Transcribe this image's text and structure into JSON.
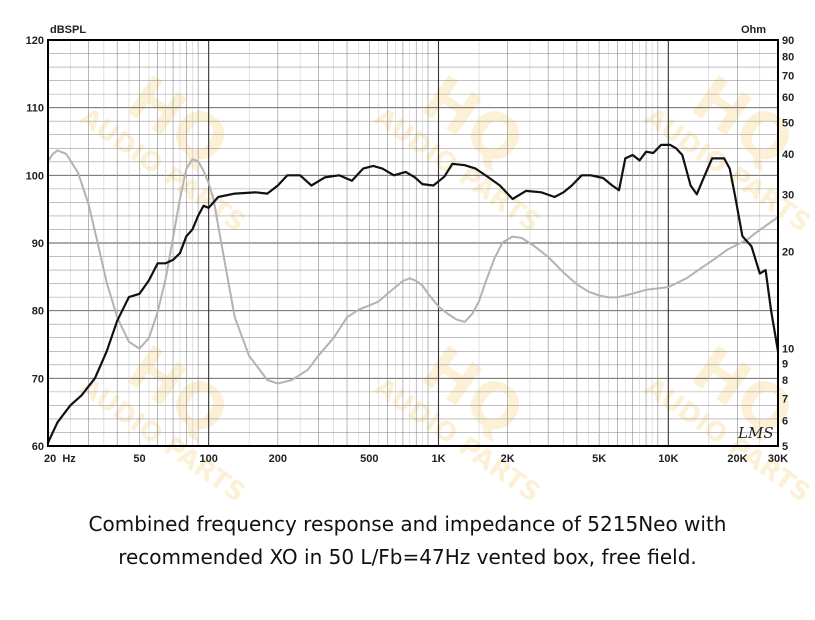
{
  "chart_data": {
    "type": "line",
    "x_scale": "log",
    "xlim": [
      20,
      30000
    ],
    "ylim": [
      60,
      120
    ],
    "ylim_right": [
      5,
      90
    ],
    "ylabel": "dBSPL",
    "ylabel_right": "Ohm",
    "x_tick_labels": [
      {
        "value": 20,
        "label": "20  Hz"
      },
      {
        "value": 50,
        "label": "50"
      },
      {
        "value": 100,
        "label": "100"
      },
      {
        "value": 200,
        "label": "200"
      },
      {
        "value": 500,
        "label": "500"
      },
      {
        "value": 1000,
        "label": "1K"
      },
      {
        "value": 2000,
        "label": "2K"
      },
      {
        "value": 5000,
        "label": "5K"
      },
      {
        "value": 10000,
        "label": "10K"
      },
      {
        "value": 20000,
        "label": "20K"
      },
      {
        "value": 30000,
        "label": "30K"
      }
    ],
    "y_tick_labels": [
      60,
      70,
      80,
      90,
      100,
      110,
      120
    ],
    "y_right_tick_labels": [
      5,
      6,
      7,
      8,
      9,
      10,
      20,
      30,
      40,
      50,
      60,
      70,
      80,
      90
    ],
    "grid": true,
    "brand_mark": "LMS",
    "series": [
      {
        "axis": "left",
        "color": "#111111",
        "points": [
          [
            20,
            60.5
          ],
          [
            22,
            63.5
          ],
          [
            25,
            66
          ],
          [
            28,
            67.5
          ],
          [
            32,
            70
          ],
          [
            36,
            74
          ],
          [
            40,
            78.5
          ],
          [
            45,
            82
          ],
          [
            50,
            82.5
          ],
          [
            55,
            84.5
          ],
          [
            60,
            87
          ],
          [
            65,
            87
          ],
          [
            70,
            87.5
          ],
          [
            75,
            88.5
          ],
          [
            80,
            91
          ],
          [
            85,
            92
          ],
          [
            90,
            94
          ],
          [
            95,
            95.5
          ],
          [
            100,
            95.2
          ],
          [
            110,
            96.8
          ],
          [
            130,
            97.3
          ],
          [
            160,
            97.5
          ],
          [
            180,
            97.3
          ],
          [
            200,
            98.5
          ],
          [
            220,
            100
          ],
          [
            250,
            100
          ],
          [
            280,
            98.5
          ],
          [
            320,
            99.7
          ],
          [
            370,
            100
          ],
          [
            420,
            99.2
          ],
          [
            470,
            101
          ],
          [
            520,
            101.4
          ],
          [
            570,
            101
          ],
          [
            640,
            100
          ],
          [
            720,
            100.5
          ],
          [
            790,
            99.7
          ],
          [
            850,
            98.7
          ],
          [
            950,
            98.5
          ],
          [
            1060,
            99.8
          ],
          [
            1150,
            101.7
          ],
          [
            1300,
            101.5
          ],
          [
            1450,
            101
          ],
          [
            1650,
            99.7
          ],
          [
            1850,
            98.5
          ],
          [
            2100,
            96.5
          ],
          [
            2400,
            97.7
          ],
          [
            2800,
            97.5
          ],
          [
            3200,
            96.8
          ],
          [
            3500,
            97.5
          ],
          [
            3800,
            98.5
          ],
          [
            4200,
            100
          ],
          [
            4600,
            100
          ],
          [
            5200,
            99.6
          ],
          [
            5700,
            98.5
          ],
          [
            6100,
            97.8
          ],
          [
            6500,
            102.5
          ],
          [
            7000,
            103
          ],
          [
            7500,
            102.2
          ],
          [
            8000,
            103.5
          ],
          [
            8600,
            103.3
          ],
          [
            9300,
            104.5
          ],
          [
            10200,
            104.5
          ],
          [
            10800,
            104
          ],
          [
            11500,
            103
          ],
          [
            12500,
            98.5
          ],
          [
            13300,
            97.2
          ],
          [
            14200,
            99.5
          ],
          [
            15500,
            102.5
          ],
          [
            17500,
            102.5
          ],
          [
            18500,
            101
          ],
          [
            19500,
            97
          ],
          [
            21000,
            91
          ],
          [
            23000,
            89.5
          ],
          [
            25000,
            85.5
          ],
          [
            26500,
            86
          ],
          [
            28000,
            80
          ],
          [
            30000,
            74
          ]
        ]
      },
      {
        "axis": "right",
        "color": "#b3b3b3",
        "points": [
          [
            20,
            38
          ],
          [
            21,
            40
          ],
          [
            22,
            41
          ],
          [
            24,
            40
          ],
          [
            27,
            35
          ],
          [
            30,
            28
          ],
          [
            33,
            21
          ],
          [
            36,
            16
          ],
          [
            40,
            12.5
          ],
          [
            45,
            10.5
          ],
          [
            50,
            10
          ],
          [
            55,
            10.8
          ],
          [
            60,
            13
          ],
          [
            65,
            16.5
          ],
          [
            70,
            22
          ],
          [
            75,
            29
          ],
          [
            80,
            36
          ],
          [
            85,
            38.5
          ],
          [
            90,
            38
          ],
          [
            95,
            35.5
          ],
          [
            100,
            32.5
          ],
          [
            105,
            29
          ],
          [
            110,
            24
          ],
          [
            120,
            17
          ],
          [
            130,
            12.5
          ],
          [
            150,
            9.5
          ],
          [
            180,
            8
          ],
          [
            200,
            7.8
          ],
          [
            230,
            8
          ],
          [
            270,
            8.6
          ],
          [
            300,
            9.5
          ],
          [
            350,
            10.8
          ],
          [
            400,
            12.5
          ],
          [
            450,
            13.2
          ],
          [
            500,
            13.6
          ],
          [
            550,
            14
          ],
          [
            600,
            14.8
          ],
          [
            650,
            15.5
          ],
          [
            700,
            16.2
          ],
          [
            750,
            16.5
          ],
          [
            800,
            16.2
          ],
          [
            850,
            15.7
          ],
          [
            900,
            14.8
          ],
          [
            1000,
            13.5
          ],
          [
            1100,
            12.8
          ],
          [
            1200,
            12.3
          ],
          [
            1300,
            12.1
          ],
          [
            1400,
            12.8
          ],
          [
            1500,
            14
          ],
          [
            1600,
            16
          ],
          [
            1750,
            19
          ],
          [
            1900,
            21.3
          ],
          [
            2100,
            22.2
          ],
          [
            2300,
            22
          ],
          [
            2600,
            20.8
          ],
          [
            3000,
            19.2
          ],
          [
            3500,
            17.2
          ],
          [
            4000,
            15.8
          ],
          [
            4500,
            15
          ],
          [
            5000,
            14.6
          ],
          [
            5500,
            14.4
          ],
          [
            6000,
            14.4
          ],
          [
            7000,
            14.8
          ],
          [
            8000,
            15.2
          ],
          [
            10000,
            15.5
          ],
          [
            12000,
            16.5
          ],
          [
            14000,
            17.8
          ],
          [
            16000,
            19
          ],
          [
            18000,
            20.2
          ],
          [
            20000,
            21
          ],
          [
            22000,
            21.7
          ],
          [
            24000,
            22.8
          ],
          [
            27000,
            24.2
          ],
          [
            30000,
            25.5
          ]
        ]
      }
    ]
  },
  "watermark": {
    "line1": "HQ",
    "line2": "AUDIO PARTS",
    "color": "#f6c34a"
  },
  "caption": {
    "line1": "Combined frequency response and impedance of 5215Neo with",
    "line2": "recommended XO in 50 L/Fb=47Hz vented box, free field."
  }
}
